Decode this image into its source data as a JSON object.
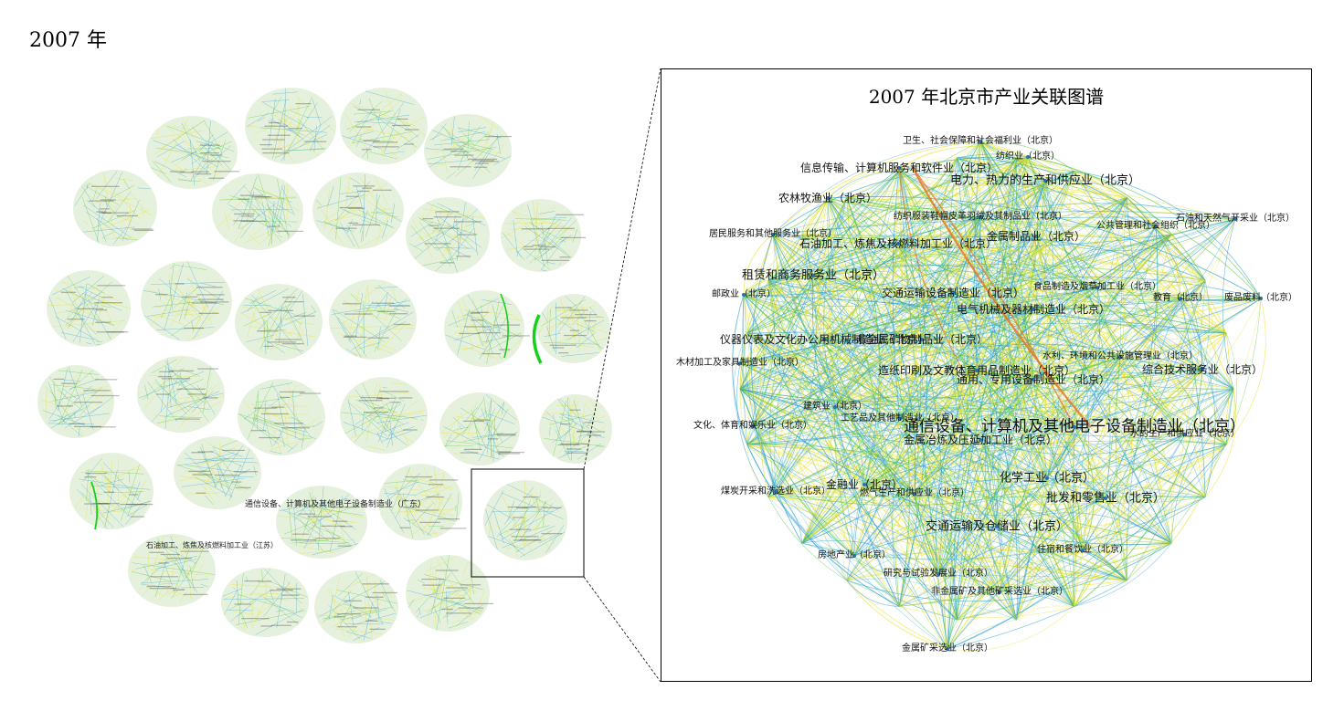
{
  "figure": {
    "year_heading": "2007 年",
    "detail_title": "2007 年北京市产业关联图谱"
  },
  "overview": {
    "labels": [
      "通信设备、计算机及其他电子设备制造业（广东）",
      "石油加工、炼焦及核燃料加工业（江苏）"
    ]
  },
  "detail_nodes": [
    {
      "label": "卫生、社会保障和社会福利业（北京）",
      "size": "s1"
    },
    {
      "label": "纺织业（北京）",
      "size": "s1"
    },
    {
      "label": "信息传输、计算机服务和软件业（北京）",
      "size": "s2"
    },
    {
      "label": "电力、热力的生产和供应业（北京）",
      "size": "s3"
    },
    {
      "label": "农林牧渔业（北京）",
      "size": "s2"
    },
    {
      "label": "纺织服装鞋帽皮革羽绒及其制品业（北京）",
      "size": "s1"
    },
    {
      "label": "公共管理和社会组织（北京）",
      "size": "s1"
    },
    {
      "label": "石油和天然气开采业（北京）",
      "size": "s1"
    },
    {
      "label": "居民服务和其他服务业（北京）",
      "size": "s1"
    },
    {
      "label": "石油加工、炼焦及核燃料加工业（北京）",
      "size": "s2"
    },
    {
      "label": "金属制品业（北京）",
      "size": "s2"
    },
    {
      "label": "租赁和商务服务业（北京）",
      "size": "s3"
    },
    {
      "label": "邮政业（北京）",
      "size": "s1"
    },
    {
      "label": "交通运输设备制造业（北京）",
      "size": "s2"
    },
    {
      "label": "食品制造及烟草加工业（北京）",
      "size": "s1"
    },
    {
      "label": "教育（北京）",
      "size": "s1"
    },
    {
      "label": "废品废料（北京）",
      "size": "s1"
    },
    {
      "label": "电气机械及器材制造业（北京）",
      "size": "s2"
    },
    {
      "label": "仪器仪表及文化办公用机械制造业（北京）",
      "size": "s2"
    },
    {
      "label": "非金属矿物制品业（北京）",
      "size": "s2"
    },
    {
      "label": "木材加工及家具制造业（北京）",
      "size": "s1"
    },
    {
      "label": "水利、环境和公共设施管理业（北京）",
      "size": "s1"
    },
    {
      "label": "综合技术服务业（北京）",
      "size": "s2"
    },
    {
      "label": "造纸印刷及文教体育用品制造业（北京）",
      "size": "s2"
    },
    {
      "label": "通用、专用设备制造业（北京）",
      "size": "s2"
    },
    {
      "label": "建筑业（北京）",
      "size": "s1"
    },
    {
      "label": "工艺品及其他制造业（北京）",
      "size": "s1"
    },
    {
      "label": "文化、体育和娱乐业（北京）",
      "size": "s1"
    },
    {
      "label": "通信设备、计算机及其他电子设备制造业（北京）",
      "size": "s4"
    },
    {
      "label": "水的生产和供应业（北京）",
      "size": "s1"
    },
    {
      "label": "金属冶炼及压延加工业（北京）",
      "size": "s2"
    },
    {
      "label": "金融业（北京）",
      "size": "s2"
    },
    {
      "label": "煤炭开采和洗选业（北京）",
      "size": "s1"
    },
    {
      "label": "化学工业（北京）",
      "size": "s3"
    },
    {
      "label": "燃气生产和供应业（北京）",
      "size": "s1"
    },
    {
      "label": "批发和零售业（北京）",
      "size": "s3"
    },
    {
      "label": "交通运输及仓储业（北京）",
      "size": "s3"
    },
    {
      "label": "房地产业（北京）",
      "size": "s1"
    },
    {
      "label": "住宿和餐饮业（北京）",
      "size": "s1"
    },
    {
      "label": "研究与试验发展业（北京）",
      "size": "s1"
    },
    {
      "label": "非金属矿及其他矿采选业（北京）",
      "size": "s1"
    },
    {
      "label": "金属矿采选业（北京）",
      "size": "s1"
    }
  ],
  "colors": {
    "edge_blue": "#2a9fd6",
    "edge_yellow": "#e8e020",
    "edge_green": "#4cc23a",
    "edge_orange": "#e8731f",
    "panel_border": "#000000"
  }
}
